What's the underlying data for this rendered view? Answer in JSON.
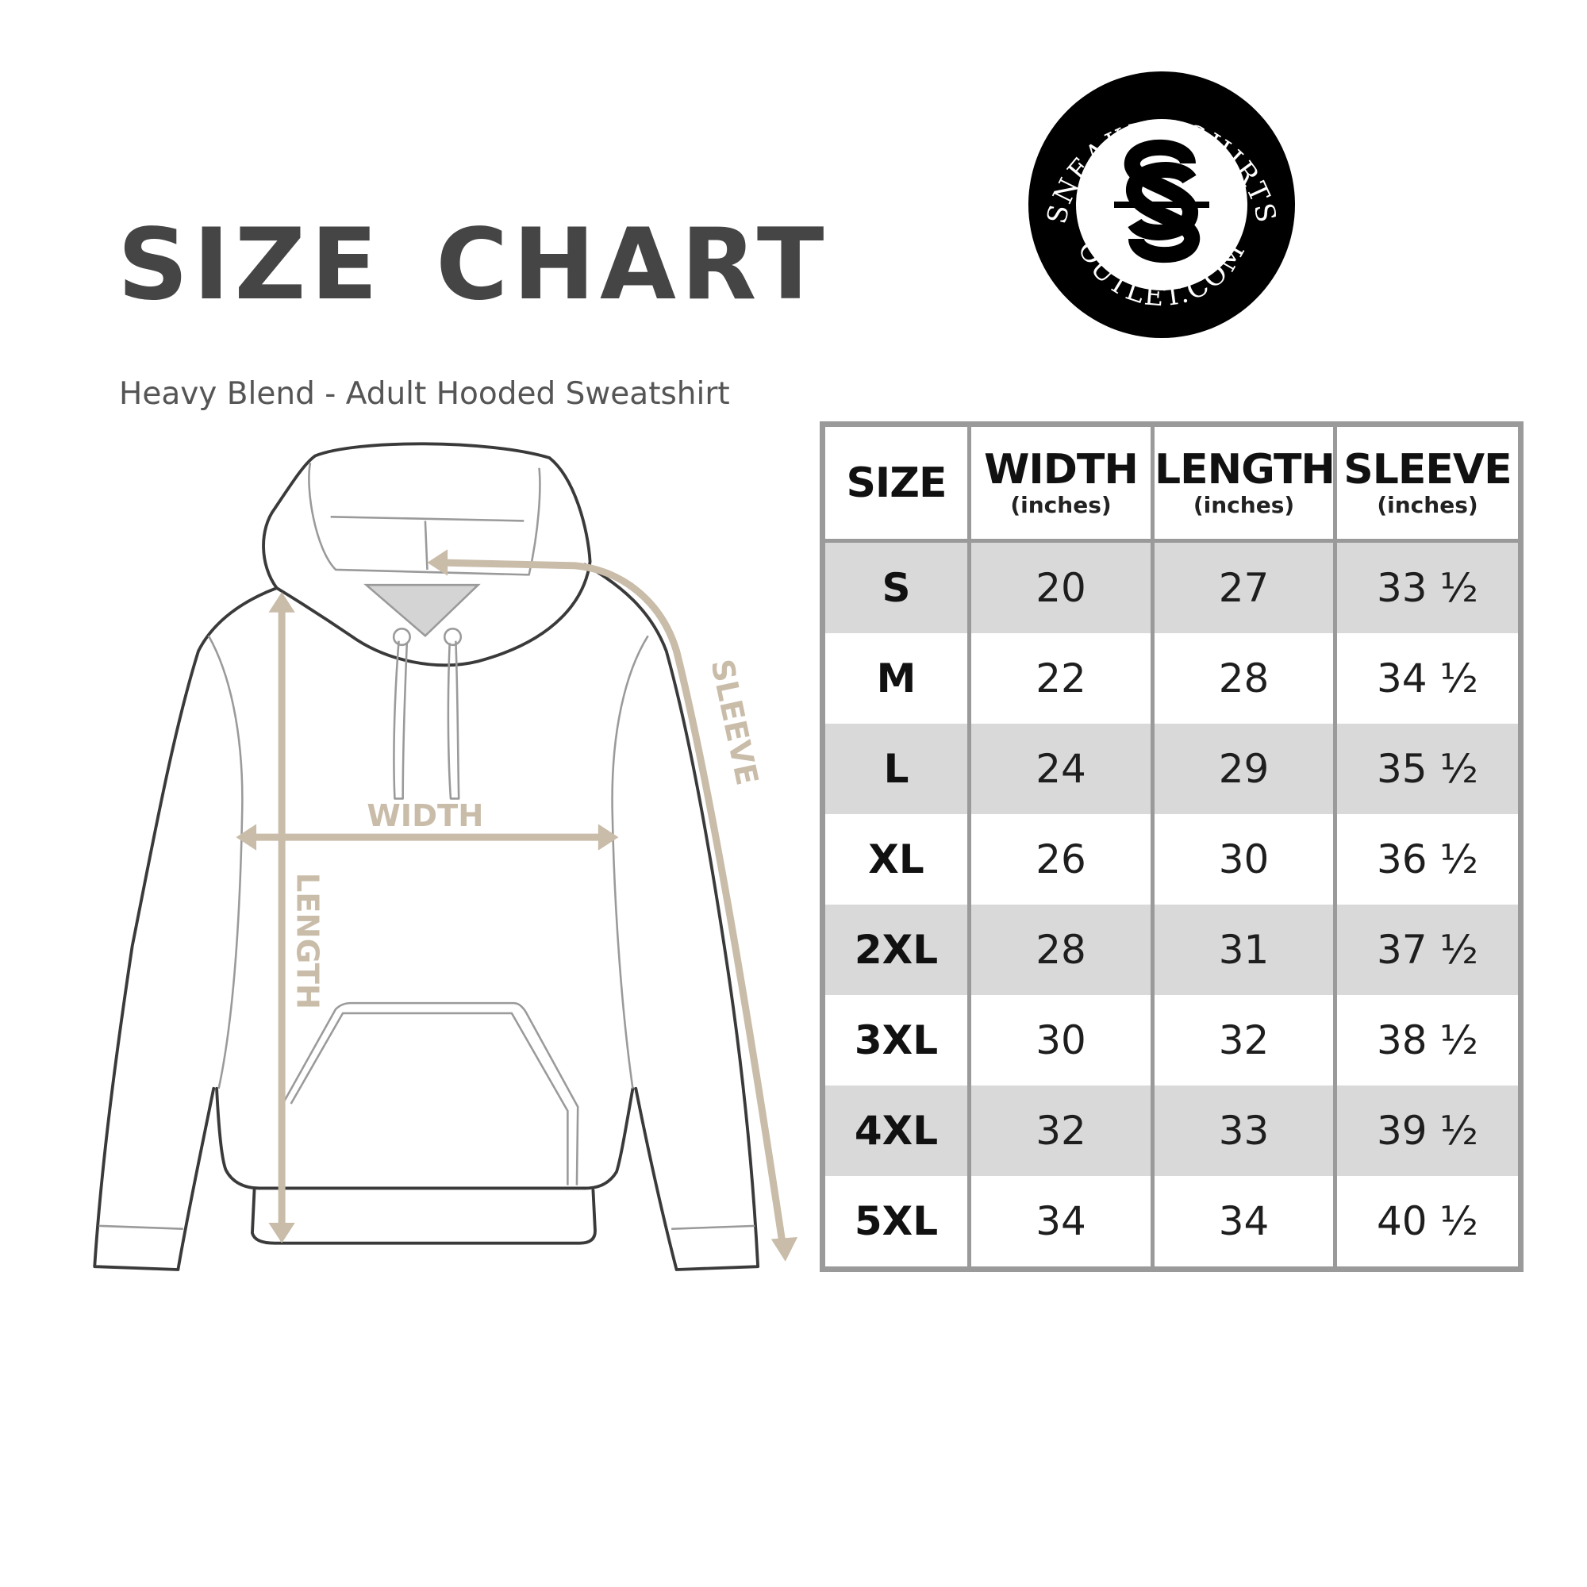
{
  "title": "SIZE CHART",
  "subtitle": "Heavy Blend - Adult Hooded Sweatshirt",
  "logo": {
    "top_text": "SNEAKER SHIRTS",
    "bottom_text": "OUTLET.COM",
    "monogram": "SS"
  },
  "diagram": {
    "width_label": "WIDTH",
    "length_label": "LENGTH",
    "sleeve_label": "SLEEVE"
  },
  "colors": {
    "measure_arrow": "#c9bca9",
    "table_border": "#9a9a9a",
    "row_shade": "#d9d9d9",
    "title": "#454545"
  },
  "table": {
    "headers": [
      {
        "label": "SIZE",
        "unit": ""
      },
      {
        "label": "WIDTH",
        "unit": "(inches)"
      },
      {
        "label": "LENGTH",
        "unit": "(inches)"
      },
      {
        "label": "SLEEVE",
        "unit": "(inches)"
      }
    ],
    "rows": [
      [
        "S",
        "20",
        "27",
        "33 ½"
      ],
      [
        "M",
        "22",
        "28",
        "34 ½"
      ],
      [
        "L",
        "24",
        "29",
        "35 ½"
      ],
      [
        "XL",
        "26",
        "30",
        "36 ½"
      ],
      [
        "2XL",
        "28",
        "31",
        "37 ½"
      ],
      [
        "3XL",
        "30",
        "32",
        "38 ½"
      ],
      [
        "4XL",
        "32",
        "33",
        "39 ½"
      ],
      [
        "5XL",
        "34",
        "34",
        "40 ½"
      ]
    ]
  }
}
